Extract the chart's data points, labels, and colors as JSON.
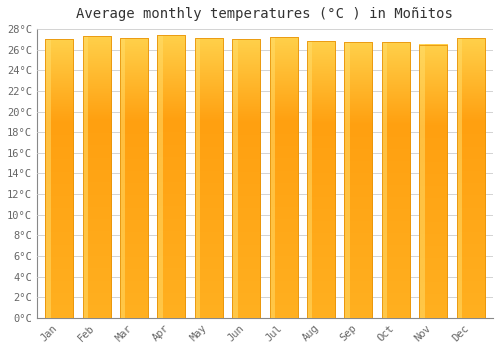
{
  "title": "Average monthly temperatures (°C ) in Moñitos",
  "months": [
    "Jan",
    "Feb",
    "Mar",
    "Apr",
    "May",
    "Jun",
    "Jul",
    "Aug",
    "Sep",
    "Oct",
    "Nov",
    "Dec"
  ],
  "values": [
    27.0,
    27.3,
    27.1,
    27.4,
    27.1,
    27.0,
    27.2,
    26.8,
    26.7,
    26.7,
    26.5,
    27.1
  ],
  "bar_color_main": "#FFA500",
  "bar_color_light": "#FFD04A",
  "bar_edge_color": "#E8940A",
  "background_color": "#FFFFFF",
  "plot_bg_color": "#FFFFFF",
  "grid_color": "#CCCCCC",
  "ylim": [
    0,
    28
  ],
  "ytick_step": 2,
  "title_fontsize": 10,
  "tick_fontsize": 7.5,
  "bar_width": 0.75
}
